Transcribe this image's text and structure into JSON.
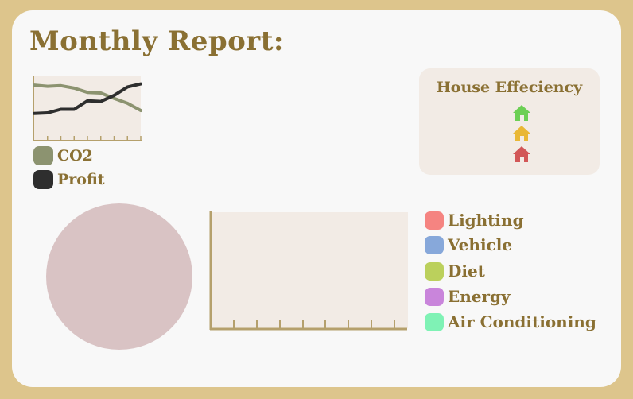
{
  "title": "Monthly Report:",
  "trend_chart": {
    "series": [
      {
        "name": "CO2",
        "color": "#8c9370",
        "values": [
          92,
          90,
          91,
          87,
          80,
          79,
          70,
          62,
          50
        ]
      },
      {
        "name": "Profit",
        "color": "#2e2e2e",
        "values": [
          45,
          46,
          52,
          52,
          66,
          65,
          75,
          89,
          94
        ]
      }
    ],
    "ylim": [
      0,
      100
    ]
  },
  "legend": [
    {
      "label": "CO2",
      "color": "#8c9370"
    },
    {
      "label": "Profit",
      "color": "#2e2e2e"
    }
  ],
  "house_card": {
    "title": "House Effeciency",
    "icons": [
      {
        "name": "house-green-icon",
        "color": "#6ccf54"
      },
      {
        "name": "house-yellow-icon",
        "color": "#e9b735"
      },
      {
        "name": "house-red-icon",
        "color": "#d25757"
      }
    ]
  },
  "pie_chart": {
    "color": "#d9c3c4"
  },
  "categories": [
    {
      "label": "Lighting",
      "color": "#f58481"
    },
    {
      "label": "Vehicle",
      "color": "#87a8da"
    },
    {
      "label": "Diet",
      "color": "#bbd05c"
    },
    {
      "label": "Energy",
      "color": "#c985db"
    },
    {
      "label": "Air Conditioning",
      "color": "#7ff2b5"
    }
  ],
  "colors": {
    "frame": "#ddc58c",
    "panel": "#f8f8f8",
    "text": "#8a7033",
    "chart_bg": "#f2ebe5",
    "axis": "#b5a06c"
  }
}
